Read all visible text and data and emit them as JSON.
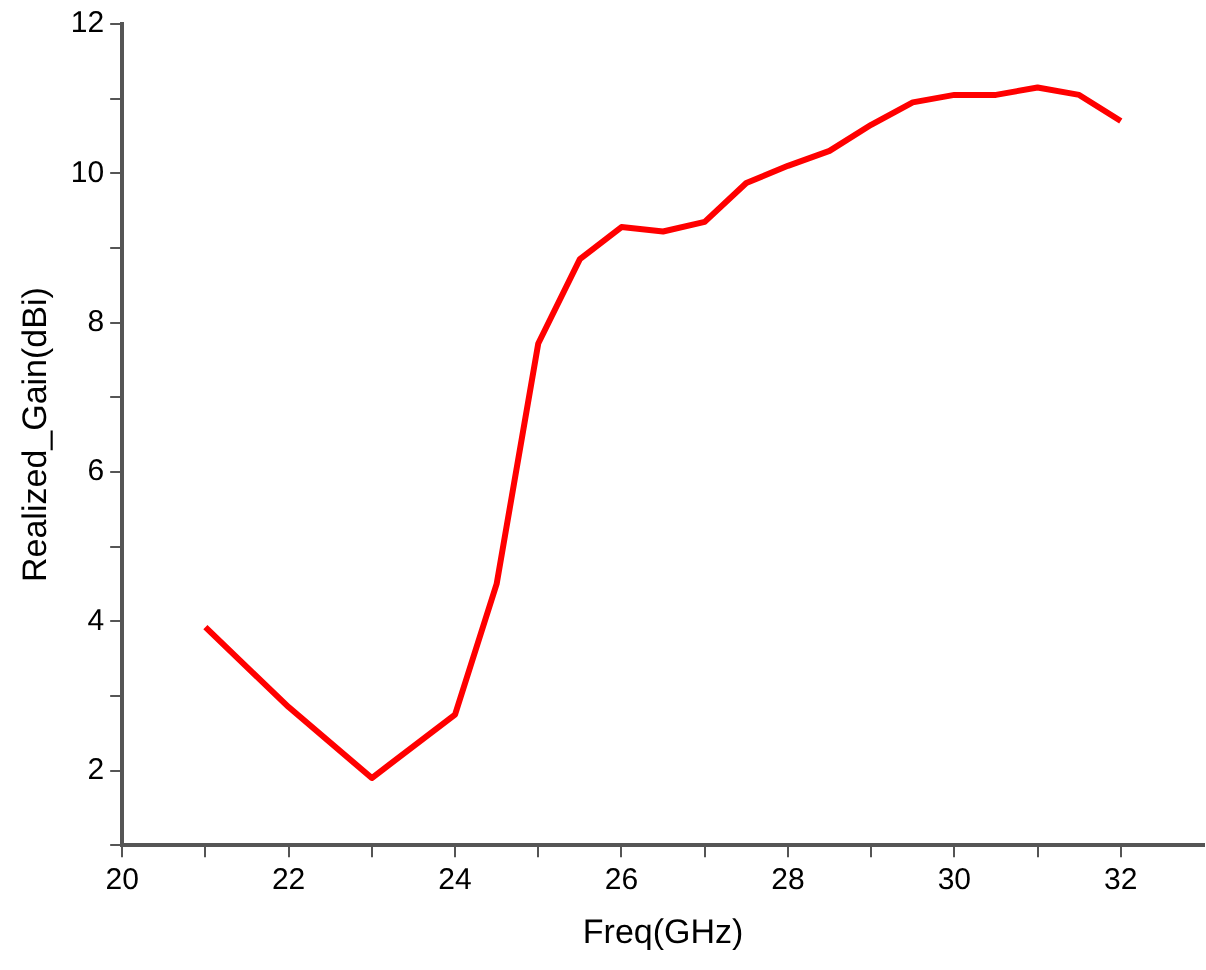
{
  "chart_data": {
    "type": "line",
    "xlabel": "Freq(GHz)",
    "ylabel": "Realized_Gain(dBi)",
    "x": [
      21,
      22,
      23,
      24,
      24.5,
      25,
      25.5,
      26,
      26.5,
      27,
      27.5,
      28,
      28.5,
      29,
      29.5,
      30,
      30.5,
      31,
      31.5,
      32
    ],
    "series": [
      {
        "color": "#ff0000",
        "values": [
          3.92,
          2.85,
          1.9,
          2.75,
          4.5,
          7.72,
          8.85,
          9.28,
          9.22,
          9.35,
          9.87,
          10.1,
          10.3,
          10.65,
          10.95,
          11.05,
          11.05,
          11.15,
          11.05,
          10.7
        ]
      }
    ],
    "xlim": [
      20,
      33
    ],
    "ylim": [
      1,
      12
    ],
    "xticks": [
      20,
      {
        "value": 21,
        "label": null
      },
      22,
      {
        "value": 23,
        "label": null
      },
      24,
      {
        "value": 25,
        "label": null
      },
      26,
      {
        "value": 27,
        "label": null
      },
      28,
      {
        "value": 29,
        "label": null
      },
      30,
      {
        "value": 31,
        "label": null
      },
      32
    ],
    "yticks": [
      {
        "value": 1,
        "label": null
      },
      2,
      {
        "value": 3,
        "label": null
      },
      4,
      {
        "value": 5,
        "label": null
      },
      6,
      {
        "value": 7,
        "label": null
      },
      8,
      {
        "value": 9,
        "label": null
      },
      10,
      {
        "value": 11,
        "label": null
      },
      12
    ],
    "grid": false,
    "legend": false,
    "marker": "none",
    "line_style": "solid"
  }
}
